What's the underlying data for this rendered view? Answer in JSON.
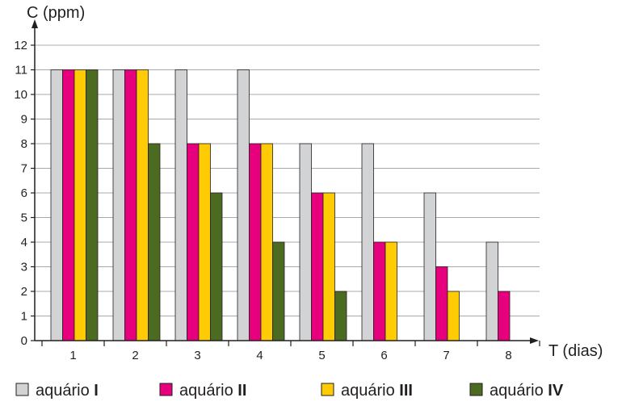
{
  "chart_data": {
    "type": "bar",
    "ylabel": "C (ppm)",
    "xlabel": "T (dias)",
    "categories": [
      "1",
      "2",
      "3",
      "4",
      "5",
      "6",
      "7",
      "8"
    ],
    "yticks": [
      "0",
      "1",
      "2",
      "3",
      "4",
      "5",
      "6",
      "7",
      "8",
      "9",
      "10",
      "11",
      "12"
    ],
    "ylim": [
      0,
      12.7
    ],
    "grid": true,
    "legend_position": "bottom",
    "series": [
      {
        "name": "aquário I",
        "name_base": "aquário ",
        "name_roman": "I",
        "color": "#d1d3d4",
        "values": [
          11,
          11,
          11,
          11,
          8,
          8,
          6,
          4
        ]
      },
      {
        "name": "aquário II",
        "name_base": "aquário ",
        "name_roman": "II",
        "color": "#e6007e",
        "values": [
          11,
          11,
          8,
          8,
          6,
          4,
          3,
          2
        ]
      },
      {
        "name": "aquário III",
        "name_base": "aquário ",
        "name_roman": "III",
        "color": "#ffcb05",
        "values": [
          11,
          11,
          8,
          8,
          6,
          4,
          2,
          null
        ]
      },
      {
        "name": "aquário IV",
        "name_base": "aquário ",
        "name_roman": "IV",
        "color": "#4b6b20",
        "values": [
          11,
          8,
          6,
          4,
          2,
          null,
          null,
          null
        ]
      }
    ]
  }
}
